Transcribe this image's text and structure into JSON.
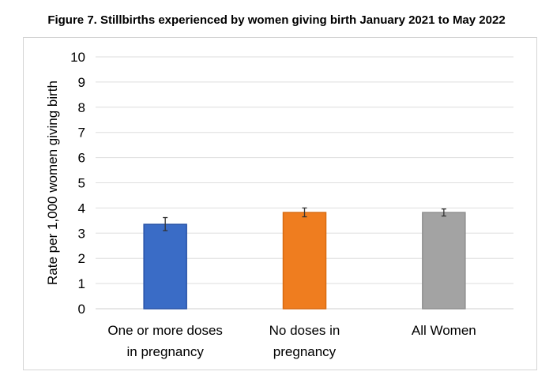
{
  "figure_title": "Figure 7. Stillbirths experienced by women giving birth January 2021 to May 2022",
  "chart_data": {
    "type": "bar",
    "title": "Figure 7. Stillbirths experienced by women giving birth January 2021 to May 2022",
    "xlabel": "",
    "ylabel": "Rate per 1,000 women giving birth",
    "ylim": [
      0,
      10
    ],
    "yticks": [
      "0",
      "1",
      "2",
      "3",
      "4",
      "5",
      "6",
      "7",
      "8",
      "9",
      "10"
    ],
    "grid": true,
    "legend": "none",
    "categories": [
      [
        "One or more doses",
        "in pregnancy"
      ],
      [
        "No doses in",
        "pregnancy"
      ],
      [
        "All Women"
      ]
    ],
    "values": [
      3.35,
      3.82,
      3.82
    ],
    "error_low": [
      3.1,
      3.65,
      3.68
    ],
    "error_high": [
      3.62,
      4.0,
      3.96
    ],
    "colors": [
      "#3a6cc6",
      "#ef7d1f",
      "#a3a3a3"
    ],
    "edge_colors": [
      "#2853a8",
      "#d86a10",
      "#8f8f8f"
    ]
  }
}
